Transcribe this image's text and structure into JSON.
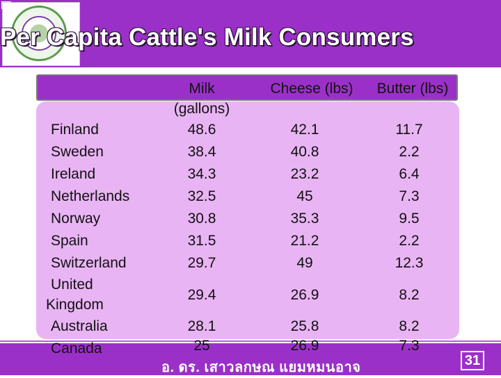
{
  "slide": {
    "title": "Per Capita Cattle's Milk Consumers",
    "page_number": "31",
    "footer": "อ. ดร. เสาวลกษณ แยมหมนอาจ"
  },
  "table": {
    "columns": [
      "Milk (gallons)",
      "Cheese (lbs)",
      "Butter (lbs)"
    ],
    "milk_header_line1": "Milk",
    "milk_header_line2": "(gallons)",
    "rows": [
      {
        "country": "Finland",
        "milk": "48.6",
        "cheese": "42.1",
        "butter": "11.7"
      },
      {
        "country": "Sweden",
        "milk": "38.4",
        "cheese": "40.8",
        "butter": "2.2"
      },
      {
        "country": "Ireland",
        "milk": "34.3",
        "cheese": "23.2",
        "butter": "6.4"
      },
      {
        "country": "Netherlands",
        "milk": "32.5",
        "cheese": "45",
        "butter": "7.3"
      },
      {
        "country": "Norway",
        "milk": "30.8",
        "cheese": "35.3",
        "butter": "9.5"
      },
      {
        "country": "Spain",
        "milk": "31.5",
        "cheese": "21.2",
        "butter": "2.2"
      },
      {
        "country": "Switzerland",
        "milk": "29.7",
        "cheese": "49",
        "butter": "12.3"
      },
      {
        "country": "United Kingdom",
        "country_line1": "United",
        "country_line2": "Kingdom",
        "milk": "29.4",
        "cheese": "26.9",
        "butter": "8.2"
      },
      {
        "country": "Australia",
        "milk": "28.1",
        "cheese": "25.8",
        "butter": "8.2"
      },
      {
        "country": "Canada",
        "milk": "25",
        "cheese": "26.9",
        "butter": "7.3"
      }
    ]
  },
  "colors": {
    "band": "#9b30c8",
    "panel": "#e9b4f4"
  }
}
